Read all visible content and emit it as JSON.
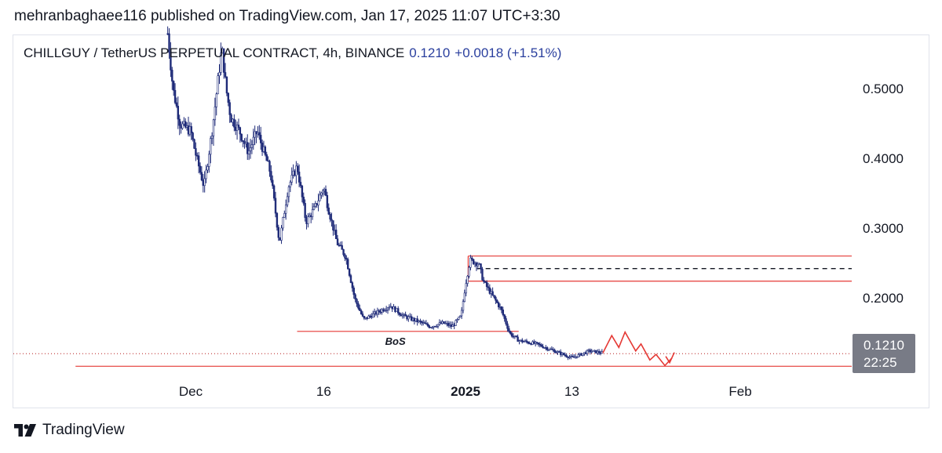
{
  "header": {
    "publisher_line": "mehranbaghaee116 published on TradingView.com, Jan 17, 2025 11:07 UTC+3:30"
  },
  "legend": {
    "symbol": "CHILLGUY / TetherUS PERPETUAL CONTRACT, 4h, BINANCE",
    "price": "0.1210",
    "change": "+0.0018 (+1.51%)"
  },
  "footer": {
    "brand": "TradingView"
  },
  "price_tag": {
    "price": "0.1210",
    "countdown": "22:25"
  },
  "colors": {
    "candle": "#1e2a78",
    "level": "#e53935",
    "last_price": "#787b86"
  },
  "chart_data": {
    "type": "candlestick",
    "symbol": "CHILLGUY / TetherUS PERPETUAL CONTRACT",
    "timeframe": "4h",
    "exchange": "BINANCE",
    "y_ticks": [
      {
        "value": 0.5,
        "label": "0.5000"
      },
      {
        "value": 0.4,
        "label": "0.4000"
      },
      {
        "value": 0.3,
        "label": "0.3000"
      },
      {
        "value": 0.2,
        "label": "0.2000"
      }
    ],
    "x_ticks": [
      {
        "day": 0,
        "label": "Dec",
        "bold": false
      },
      {
        "day": 15,
        "label": "16",
        "bold": false
      },
      {
        "day": 31,
        "label": "2025",
        "bold": true
      },
      {
        "day": 43,
        "label": "13",
        "bold": false
      },
      {
        "day": 62,
        "label": "Feb",
        "bold": false
      }
    ],
    "ylim": [
      0.095,
      0.58
    ],
    "xlim": [
      -13,
      77.5
    ],
    "price_path": [
      [
        -2.6,
        0.58
      ],
      [
        -2,
        0.5
      ],
      [
        -1.2,
        0.45
      ],
      [
        0,
        0.44
      ],
      [
        0.5,
        0.41
      ],
      [
        1.5,
        0.36
      ],
      [
        2.5,
        0.45
      ],
      [
        3.5,
        0.56
      ],
      [
        4,
        0.5
      ],
      [
        4.5,
        0.46
      ],
      [
        5.5,
        0.44
      ],
      [
        6.5,
        0.41
      ],
      [
        7.5,
        0.44
      ],
      [
        9,
        0.38
      ],
      [
        10,
        0.28
      ],
      [
        11,
        0.36
      ],
      [
        12,
        0.39
      ],
      [
        13,
        0.31
      ],
      [
        14,
        0.33
      ],
      [
        15,
        0.36
      ],
      [
        15.5,
        0.33
      ],
      [
        16.5,
        0.28
      ],
      [
        17.5,
        0.26
      ],
      [
        18.5,
        0.2
      ],
      [
        19.5,
        0.17
      ],
      [
        21,
        0.18
      ],
      [
        22.5,
        0.19
      ],
      [
        24,
        0.175
      ],
      [
        25.5,
        0.168
      ],
      [
        27,
        0.16
      ],
      [
        28.5,
        0.165
      ],
      [
        29.5,
        0.16
      ],
      [
        30.5,
        0.175
      ],
      [
        31,
        0.22
      ],
      [
        31.5,
        0.255
      ],
      [
        32.5,
        0.25
      ],
      [
        33,
        0.225
      ],
      [
        34,
        0.205
      ],
      [
        35,
        0.185
      ],
      [
        36,
        0.15
      ],
      [
        37,
        0.14
      ],
      [
        39,
        0.135
      ],
      [
        41,
        0.125
      ],
      [
        43,
        0.115
      ],
      [
        45,
        0.125
      ],
      [
        46.5,
        0.122
      ]
    ],
    "levels": [
      {
        "type": "zone_top",
        "value": 0.261,
        "from_day": 31.3
      },
      {
        "type": "zone_mid",
        "value": 0.243,
        "from_day": 32.3,
        "style": "dashed"
      },
      {
        "type": "zone_bottom",
        "value": 0.225,
        "from_day": 31.3
      },
      {
        "type": "bos",
        "value": 0.153,
        "from_day": 12,
        "to_day": 37
      },
      {
        "type": "support",
        "value": 0.103,
        "from_day": -13
      }
    ],
    "bos_label": "BoS",
    "projection": [
      [
        46.5,
        0.122
      ],
      [
        47.5,
        0.147
      ],
      [
        48.3,
        0.13
      ],
      [
        49,
        0.152
      ],
      [
        50.2,
        0.125
      ],
      [
        50.8,
        0.135
      ],
      [
        51.8,
        0.112
      ],
      [
        52.5,
        0.12
      ],
      [
        53.5,
        0.104
      ],
      [
        54.3,
        0.115
      ]
    ],
    "last_price": 0.121
  }
}
